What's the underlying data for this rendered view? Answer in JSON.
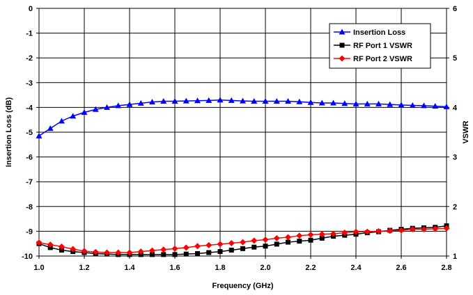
{
  "chart_data": {
    "type": "line",
    "xlabel": "Frequency (GHz)",
    "ylabel": "Insertion Loss (dB)",
    "y2label": "VSWR",
    "xlim": [
      1.0,
      2.8
    ],
    "ylim": [
      -10,
      0
    ],
    "y2lim": [
      1,
      6
    ],
    "xticks": [
      "1.0",
      "1.2",
      "1.4",
      "1.6",
      "1.8",
      "2.0",
      "2.2",
      "2.4",
      "2.6",
      "2.8"
    ],
    "yticks": [
      "0",
      "-1",
      "-2",
      "-3",
      "-4",
      "-5",
      "-6",
      "-7",
      "-8",
      "-9",
      "-10"
    ],
    "y2ticks": [
      "6",
      "5",
      "4",
      "3",
      "2",
      "1"
    ],
    "grid": true,
    "legend_position": "top-right",
    "series": [
      {
        "name": "Insertion Loss",
        "axis": "left",
        "color": "#0000FF",
        "marker": "triangle",
        "x": [
          1.0,
          1.05,
          1.1,
          1.15,
          1.2,
          1.25,
          1.3,
          1.35,
          1.4,
          1.45,
          1.5,
          1.55,
          1.6,
          1.65,
          1.7,
          1.75,
          1.8,
          1.85,
          1.9,
          1.95,
          2.0,
          2.05,
          2.1,
          2.15,
          2.2,
          2.25,
          2.3,
          2.35,
          2.4,
          2.45,
          2.5,
          2.55,
          2.6,
          2.65,
          2.7,
          2.75,
          2.8
        ],
        "values": [
          -5.15,
          -4.85,
          -4.55,
          -4.35,
          -4.2,
          -4.08,
          -4.0,
          -3.93,
          -3.88,
          -3.83,
          -3.78,
          -3.75,
          -3.75,
          -3.74,
          -3.73,
          -3.72,
          -3.7,
          -3.72,
          -3.74,
          -3.75,
          -3.75,
          -3.75,
          -3.75,
          -3.77,
          -3.8,
          -3.82,
          -3.82,
          -3.84,
          -3.86,
          -3.86,
          -3.86,
          -3.88,
          -3.9,
          -3.92,
          -3.93,
          -3.95,
          -3.97
        ]
      },
      {
        "name": "RF Port 1 VSWR",
        "axis": "right",
        "color": "#000000",
        "marker": "square",
        "x": [
          1.0,
          1.05,
          1.1,
          1.15,
          1.2,
          1.25,
          1.3,
          1.35,
          1.4,
          1.45,
          1.5,
          1.55,
          1.6,
          1.65,
          1.7,
          1.75,
          1.8,
          1.85,
          1.9,
          1.95,
          2.0,
          2.05,
          2.1,
          2.15,
          2.2,
          2.25,
          2.3,
          2.35,
          2.4,
          2.45,
          2.5,
          2.55,
          2.6,
          2.65,
          2.7,
          2.75,
          2.8
        ],
        "values": [
          1.25,
          1.17,
          1.12,
          1.09,
          1.07,
          1.05,
          1.04,
          1.03,
          1.03,
          1.03,
          1.03,
          1.03,
          1.03,
          1.04,
          1.05,
          1.07,
          1.09,
          1.12,
          1.15,
          1.18,
          1.2,
          1.24,
          1.28,
          1.3,
          1.32,
          1.36,
          1.4,
          1.42,
          1.44,
          1.47,
          1.49,
          1.52,
          1.54,
          1.56,
          1.57,
          1.58,
          1.61
        ]
      },
      {
        "name": "RF Port 2 VSWR",
        "axis": "right",
        "color": "#FF0000",
        "marker": "diamond",
        "x": [
          1.0,
          1.05,
          1.1,
          1.15,
          1.2,
          1.25,
          1.3,
          1.35,
          1.4,
          1.45,
          1.5,
          1.55,
          1.6,
          1.65,
          1.7,
          1.75,
          1.8,
          1.85,
          1.9,
          1.95,
          2.0,
          2.05,
          2.1,
          2.15,
          2.2,
          2.25,
          2.3,
          2.35,
          2.4,
          2.45,
          2.5,
          2.55,
          2.6,
          2.65,
          2.7,
          2.75,
          2.8
        ],
        "values": [
          1.27,
          1.23,
          1.19,
          1.14,
          1.1,
          1.08,
          1.07,
          1.07,
          1.07,
          1.09,
          1.11,
          1.13,
          1.15,
          1.17,
          1.2,
          1.22,
          1.24,
          1.26,
          1.28,
          1.31,
          1.33,
          1.36,
          1.38,
          1.41,
          1.43,
          1.44,
          1.45,
          1.47,
          1.49,
          1.49,
          1.5,
          1.51,
          1.52,
          1.54,
          1.54,
          1.55,
          1.56
        ]
      }
    ]
  }
}
